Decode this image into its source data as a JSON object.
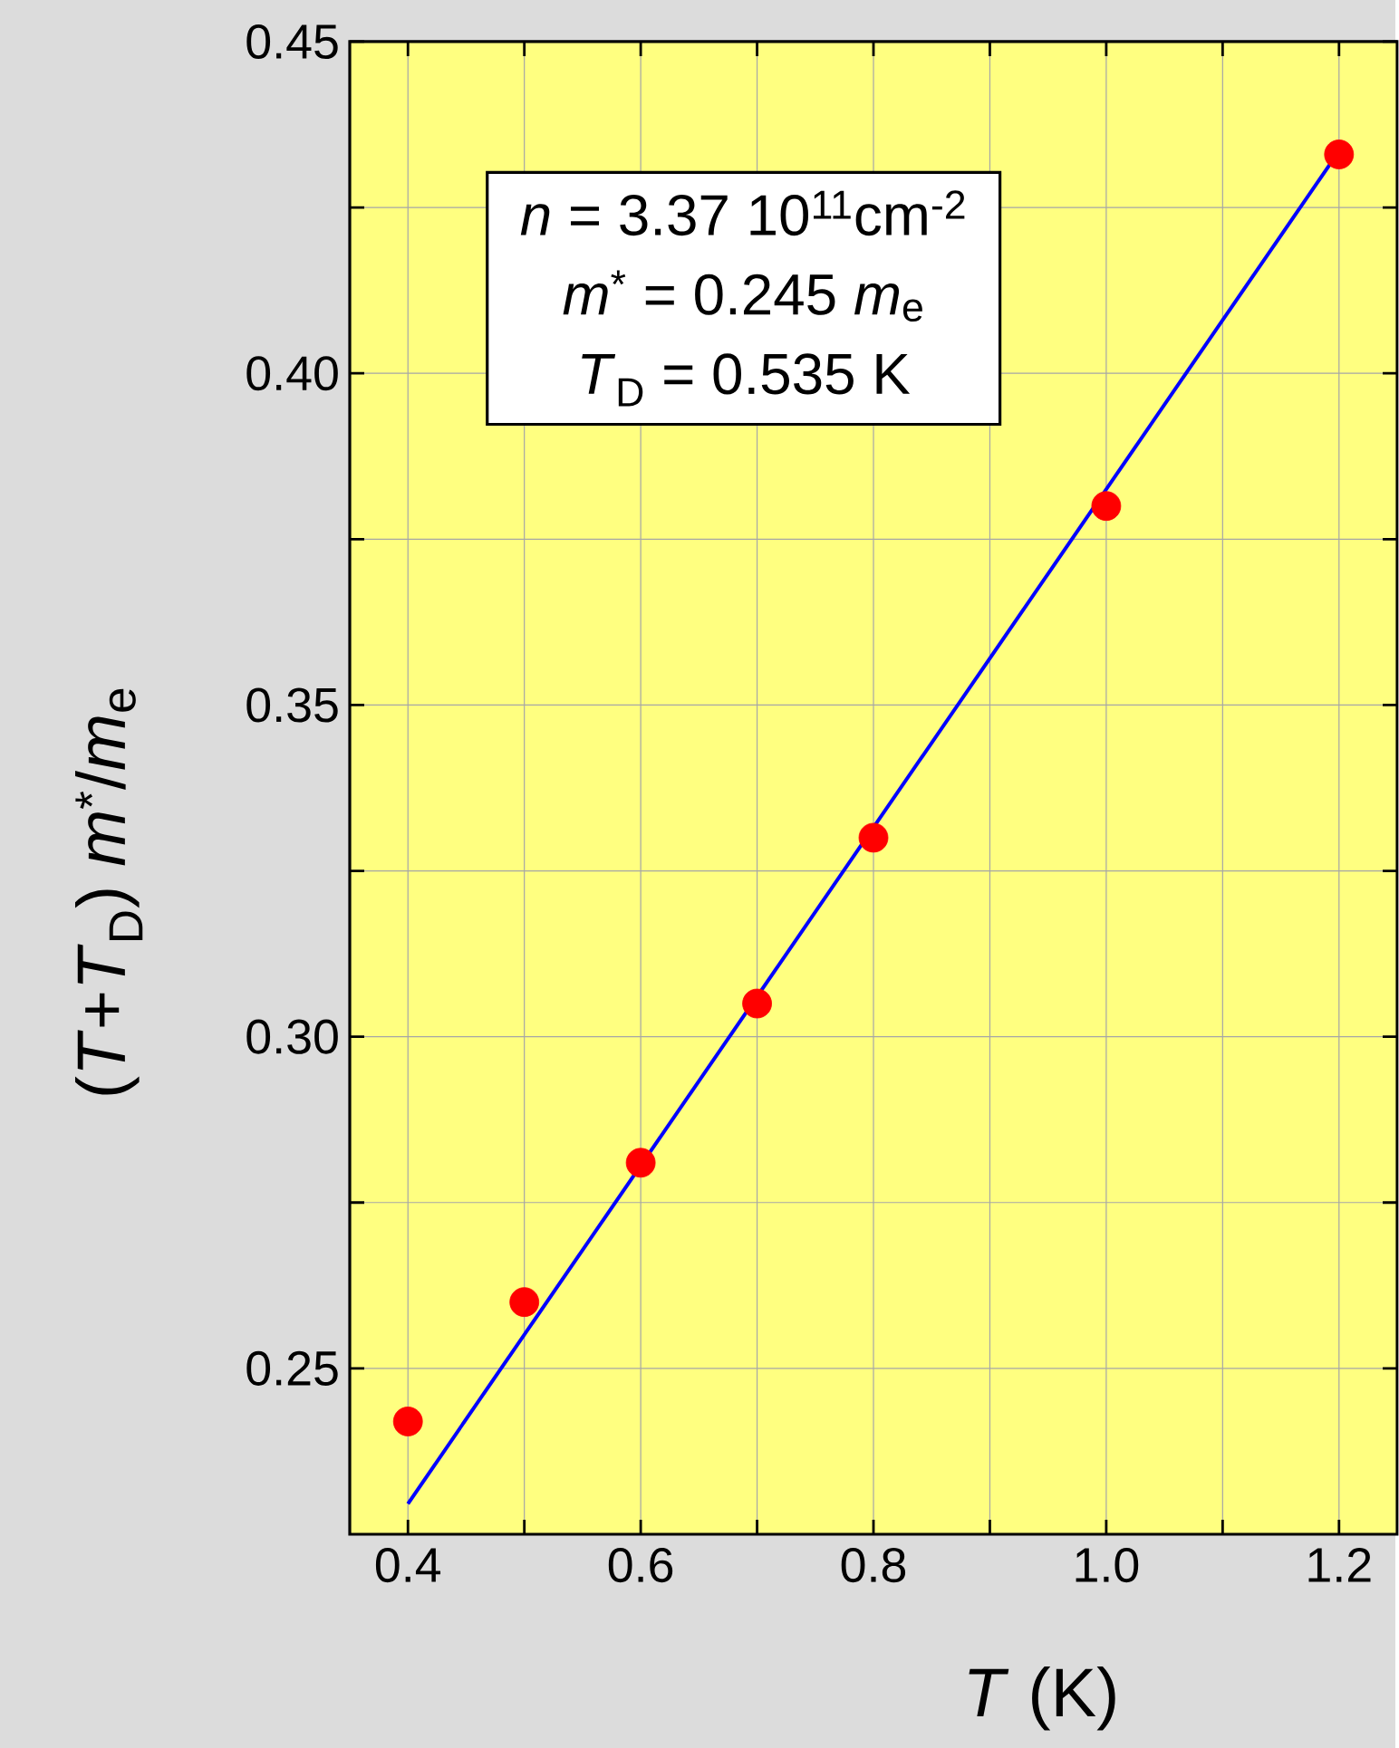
{
  "chart_data": {
    "type": "scatter",
    "xlabel": "*T* (K)",
    "ylabel": "(*T*+*T*$_{D}$) *m*$^{*}$/*m*$_{e}$",
    "annotations": [
      "*n* = 3.37 10$^{11}$cm$^{-2}$",
      "*m*$^{*}$ = 0.245 *m*$_{e}$",
      "*T*$_{D}$ = 0.535 K"
    ],
    "series": [
      {
        "type": "scatter",
        "color": "#ff0000",
        "marker": "circle",
        "x": [
          0.4,
          0.5,
          0.6,
          0.7,
          0.8,
          1.0,
          1.2
        ],
        "values": [
          0.242,
          0.26,
          0.281,
          0.305,
          0.33,
          0.38,
          0.433
        ]
      },
      {
        "type": "line",
        "color": "#0000ff",
        "marker": "none",
        "line_style": "solid",
        "x": [
          0.4,
          1.2
        ],
        "values": [
          0.2296,
          0.4335
        ]
      }
    ],
    "xlim": [
      0.35,
      1.25
    ],
    "ylim": [
      0.225,
      0.45
    ],
    "xticks": [
      0.4,
      {
        "value": 0.5,
        "label": null
      },
      0.6,
      {
        "value": 0.7,
        "label": null
      },
      0.8,
      {
        "value": 0.9,
        "label": null
      },
      {
        "value": 1,
        "label": "1.0"
      },
      {
        "value": 1.1,
        "label": null
      },
      1.2
    ],
    "yticks": [
      {
        "value": 0.25,
        "label": "0.25"
      },
      {
        "value": 0.275,
        "label": null
      },
      {
        "value": 0.3,
        "label": "0.30"
      },
      {
        "value": 0.325,
        "label": null
      },
      {
        "value": 0.35,
        "label": "0.35"
      },
      {
        "value": 0.375,
        "label": null
      },
      {
        "value": 0.4,
        "label": "0.40"
      },
      {
        "value": 0.425,
        "label": null
      },
      {
        "value": 0.45,
        "label": "0.45"
      }
    ],
    "grid": true
  }
}
